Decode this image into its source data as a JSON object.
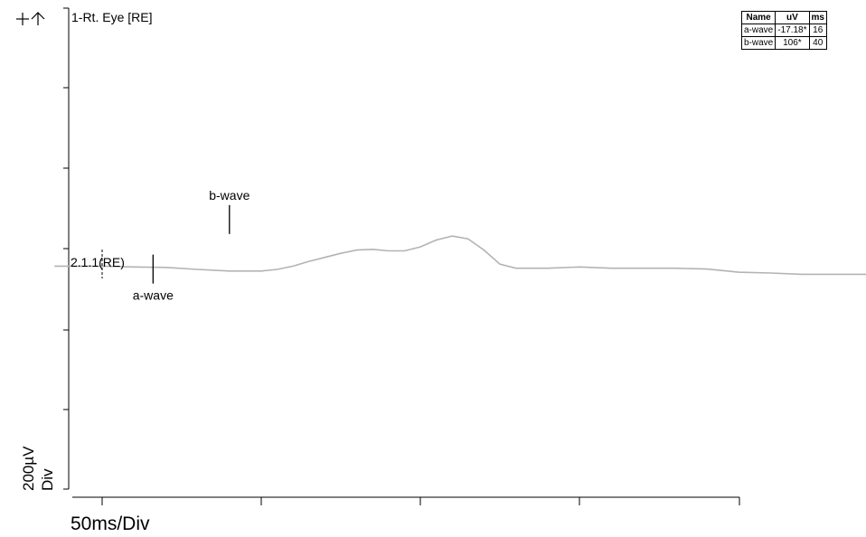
{
  "chart_data": {
    "type": "line",
    "title": "1-Rt. Eye [RE]",
    "trace_label": "2.1.1(RE)",
    "xlabel": "50ms/Div",
    "ylabel_value": "200µV",
    "ylabel_unit": "Div",
    "x_div_ms": 50,
    "y_div_uv": 200,
    "grid": false,
    "line_color": "#b3b3b3",
    "series": [
      {
        "x": [
          -15,
          0,
          10,
          20,
          30,
          40,
          50,
          55,
          60,
          65,
          70,
          75,
          80,
          85,
          90,
          95,
          100,
          105,
          110,
          115,
          120,
          125,
          130,
          140,
          150,
          160,
          170,
          180,
          190,
          200,
          210,
          220,
          230,
          240,
          250,
          260,
          270,
          280,
          290,
          300,
          310,
          320,
          330,
          340,
          350,
          360,
          370,
          380,
          390,
          400,
          410,
          420,
          430,
          440,
          450,
          460,
          470,
          480,
          490,
          500,
          510,
          520,
          530,
          542
        ],
        "y": [
          -10,
          -10,
          -12,
          -13,
          -18,
          -22,
          -22,
          -18,
          -10,
          2,
          12,
          22,
          30,
          32,
          28,
          28,
          38,
          55,
          65,
          58,
          30,
          -5,
          -15,
          -15,
          -12,
          -15,
          -15,
          -15,
          -17,
          -25,
          -27,
          -30,
          -30,
          -30,
          -30,
          -25,
          -27,
          -25,
          -22,
          -20,
          -17,
          -20,
          -20,
          -20,
          -20,
          -20,
          -20,
          -20,
          -20,
          -20,
          -20,
          -20,
          -18,
          -20,
          -17,
          -17,
          -17,
          -17,
          -17,
          -17,
          -20,
          -20,
          -17,
          -15
        ]
      }
    ],
    "markers": [
      {
        "name": "a-wave",
        "ms": 16,
        "uv": -17.18
      },
      {
        "name": "b-wave",
        "ms": 40,
        "uv": 106
      }
    ],
    "table": {
      "headers": [
        "Name",
        "uV",
        "ms"
      ],
      "rows": [
        [
          "a-wave",
          "-17.18*",
          "16"
        ],
        [
          "b-wave",
          "106*",
          "40"
        ]
      ]
    }
  }
}
